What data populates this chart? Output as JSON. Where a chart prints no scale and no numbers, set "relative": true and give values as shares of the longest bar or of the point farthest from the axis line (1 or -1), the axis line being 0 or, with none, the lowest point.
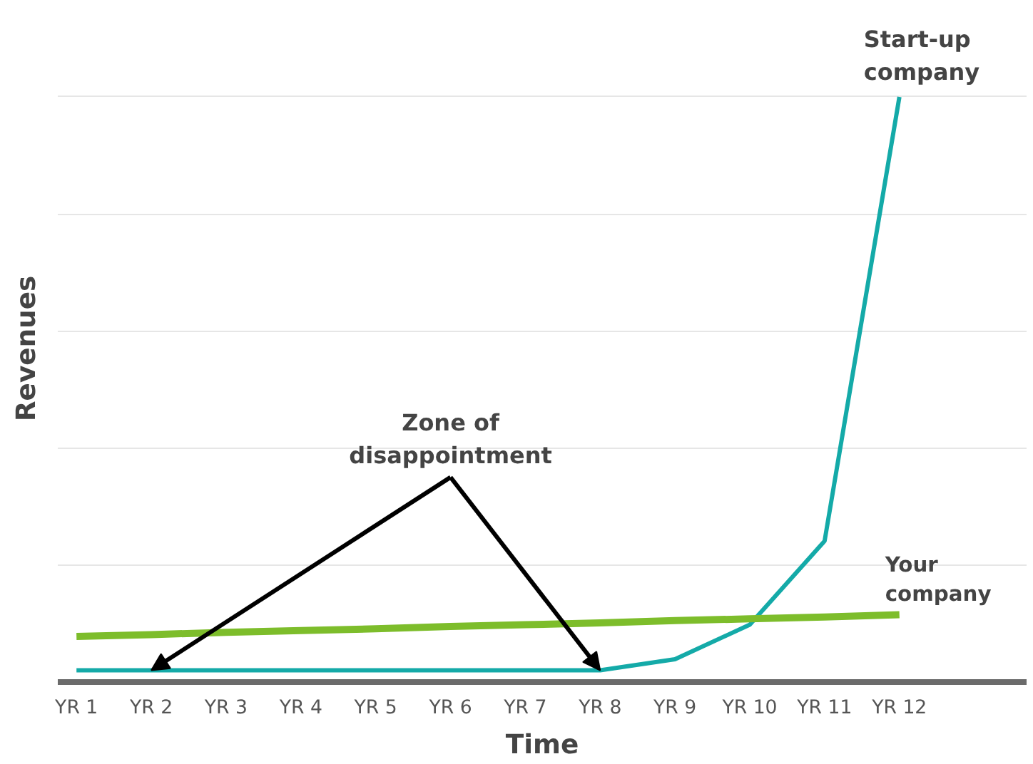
{
  "chart_data": {
    "type": "line",
    "relative": true,
    "xlabel": "Time",
    "ylabel": "Revenues",
    "categories": [
      "YR 1",
      "YR 2",
      "YR 3",
      "YR 4",
      "YR 5",
      "YR 6",
      "YR 7",
      "YR 8",
      "YR 9",
      "YR 10",
      "YR 11",
      "YR 12"
    ],
    "series": [
      {
        "name": "Start-up company",
        "color": "#14aaa8",
        "values": [
          0.02,
          0.02,
          0.02,
          0.02,
          0.02,
          0.02,
          0.02,
          0.02,
          0.039,
          0.098,
          0.241,
          1
        ]
      },
      {
        "name": "Your company",
        "color": "#7dbd2b",
        "values": [
          0.078,
          0.081,
          0.085,
          0.088,
          0.091,
          0.095,
          0.098,
          0.101,
          0.105,
          0.108,
          0.111,
          0.115
        ]
      }
    ],
    "annotations": [
      "Zone of disappointment"
    ],
    "grid": "y",
    "marker": "none",
    "line_style": "solid"
  }
}
